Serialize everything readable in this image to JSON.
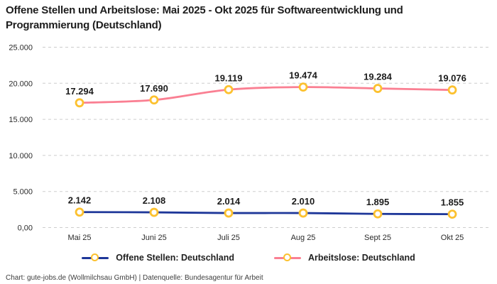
{
  "title": "Offene Stellen und Arbeitslose: Mai 2025 - Okt 2025 für Softwareentwicklung und Programmierung (Deutschland)",
  "footer": "Chart: gute-jobs.de (Wollmilchsau GmbH) | Datenquelle: Bundesagentur für Arbeit",
  "chart_data": {
    "type": "line",
    "categories": [
      "Mai 25",
      "Juni 25",
      "Juli 25",
      "Aug 25",
      "Sept 25",
      "Okt 25"
    ],
    "series": [
      {
        "name": "Offene Stellen: Deutschland",
        "values": [
          2142,
          2108,
          2014,
          2010,
          1895,
          1855
        ],
        "labels": [
          "2.142",
          "2.108",
          "2.014",
          "2.010",
          "1.895",
          "1.855"
        ],
        "color": "#1e3799"
      },
      {
        "name": "Arbeitslose: Deutschland",
        "values": [
          17294,
          17690,
          19119,
          19474,
          19284,
          19076
        ],
        "labels": [
          "17.294",
          "17.690",
          "19.119",
          "19.474",
          "19.284",
          "19.076"
        ],
        "color": "#fa7f92"
      }
    ],
    "marker_color": "#fcc12f",
    "grid_color": "#cdcdcd",
    "ylim": [
      0,
      25000
    ],
    "yticks": [
      0,
      5000,
      10000,
      15000,
      20000,
      25000
    ],
    "ytick_labels": [
      "0,00",
      "5.000",
      "10.000",
      "15.000",
      "20.000",
      "25.000"
    ],
    "grid": "horizontal-dashed",
    "legend_position": "bottom"
  }
}
